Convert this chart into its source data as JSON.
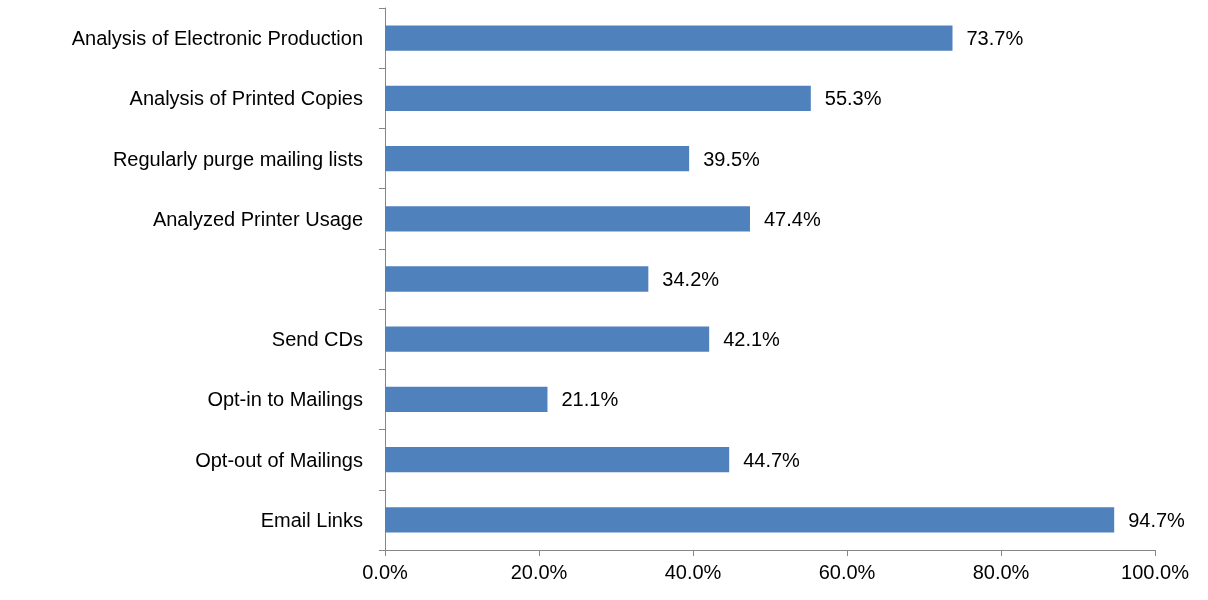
{
  "chart_data": {
    "type": "bar",
    "orientation": "horizontal",
    "categories": [
      "Analysis of Electronic Production",
      "Analysis of Printed Copies",
      "Regularly purge mailing lists",
      "Analyzed Printer Usage",
      null,
      "Send CDs",
      "Opt-in to Mailings",
      "Opt-out of Mailings",
      "Email Links"
    ],
    "values": [
      73.7,
      55.3,
      39.5,
      47.4,
      34.2,
      42.1,
      21.1,
      44.7,
      94.7
    ],
    "value_labels": [
      "73.7%",
      "55.3%",
      "39.5%",
      "47.4%",
      "34.2%",
      "42.1%",
      "21.1%",
      "44.7%",
      "94.7%"
    ],
    "color": "#4f81bd",
    "xlim": [
      0,
      100
    ],
    "xticks": [
      {
        "value": 0,
        "label": "0.0%"
      },
      {
        "value": 20,
        "label": "20.0%"
      },
      {
        "value": 40,
        "label": "40.0%"
      },
      {
        "value": 60,
        "label": "60.0%"
      },
      {
        "value": 80,
        "label": "80.0%"
      },
      {
        "value": 100,
        "label": "100.0%"
      }
    ],
    "grid": false
  }
}
